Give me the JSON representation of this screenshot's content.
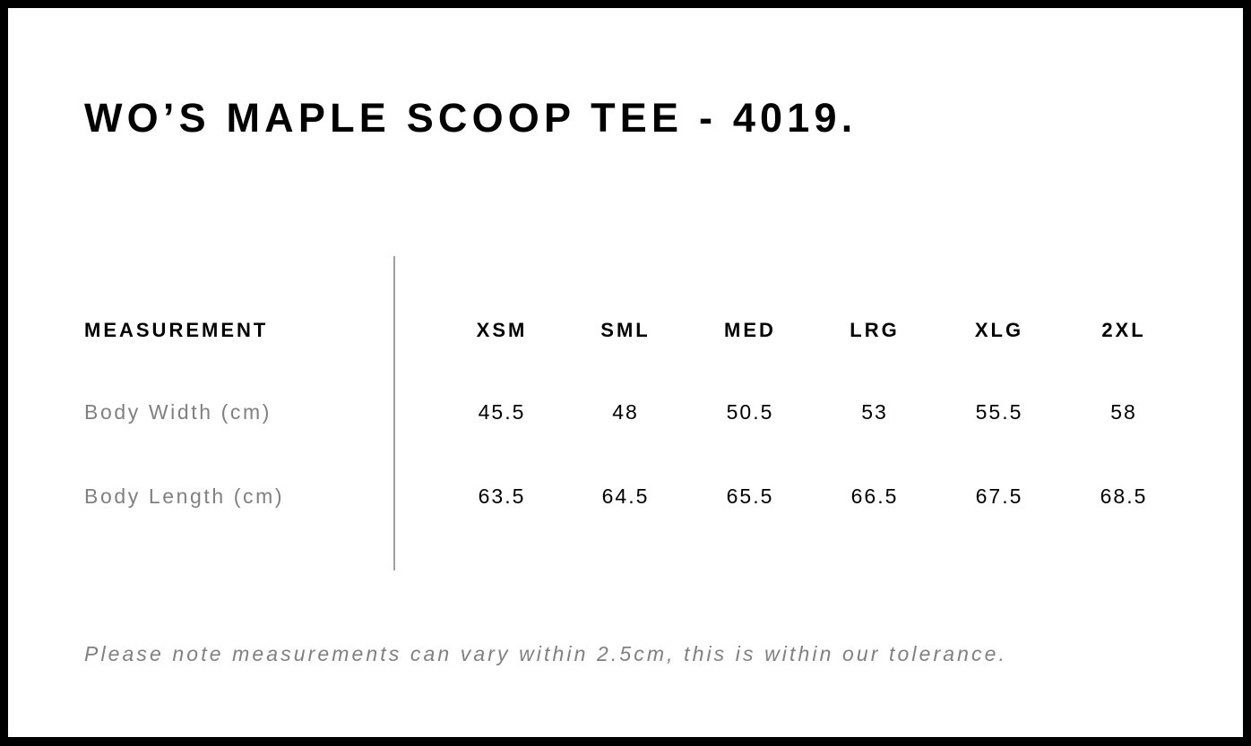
{
  "title": "WO’S MAPLE SCOOP TEE - 4019.",
  "table": {
    "header_label": "MEASUREMENT",
    "sizes": [
      "XSM",
      "SML",
      "MED",
      "LRG",
      "XLG",
      "2XL"
    ],
    "rows": [
      {
        "label": "Body Width (cm)",
        "values": [
          "45.5",
          "48",
          "50.5",
          "53",
          "55.5",
          "58"
        ]
      },
      {
        "label": "Body Length (cm)",
        "values": [
          "63.5",
          "64.5",
          "65.5",
          "66.5",
          "67.5",
          "68.5"
        ]
      }
    ]
  },
  "note": "Please note measurements can vary within 2.5cm, this is within our tolerance.",
  "colors": {
    "border": "#000000",
    "label_text": "#808080",
    "divider": "#a0a0a0"
  }
}
